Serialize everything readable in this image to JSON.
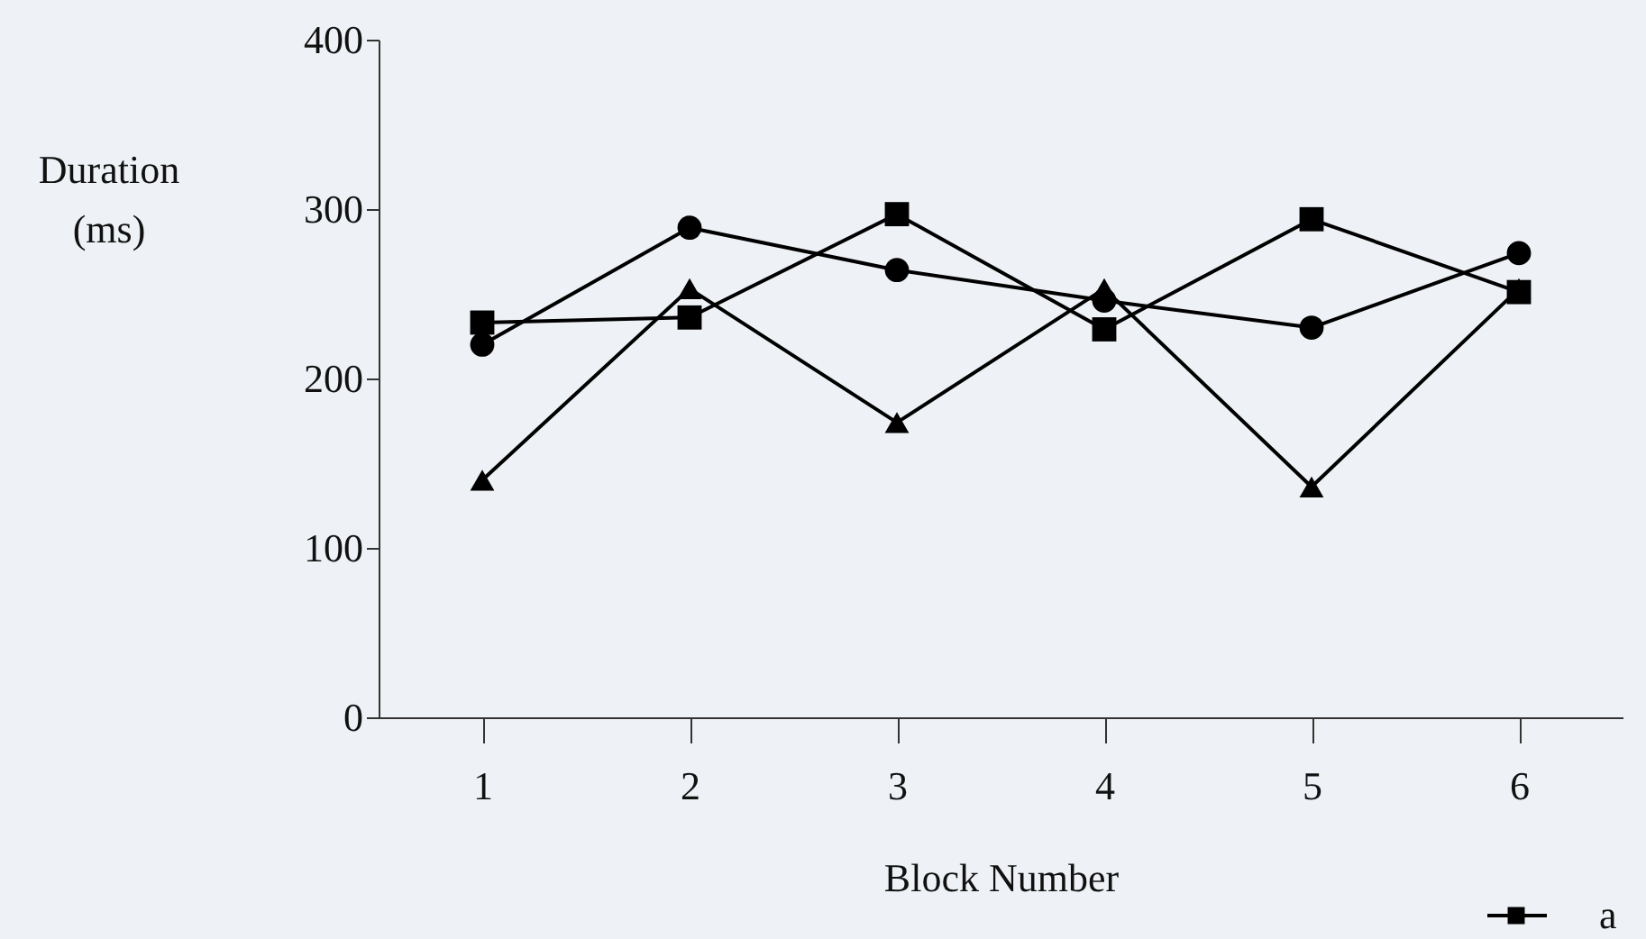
{
  "chart_data": {
    "type": "line",
    "xlabel": "Block Number",
    "ylabel": "Duration (ms)",
    "x": [
      1,
      2,
      3,
      4,
      5,
      6
    ],
    "xlim": [
      0.5,
      6.5
    ],
    "xticks": [
      1,
      2,
      3,
      4,
      5,
      6
    ],
    "ylim": [
      0,
      400
    ],
    "yticks": [
      0,
      100,
      200,
      300,
      400
    ],
    "grid": false,
    "legend": "bottom right",
    "line_style": "solid",
    "series": [
      {
        "name": "a",
        "color": "#000000",
        "marker": "square",
        "values": [
          233,
          236,
          297,
          229,
          294,
          251
        ]
      },
      {
        "color": "#000000",
        "marker": "circle",
        "values": [
          220,
          289,
          264,
          246,
          230,
          274
        ]
      },
      {
        "color": "#000000",
        "marker": "triangle",
        "values": [
          140,
          253,
          174,
          253,
          136,
          253
        ]
      }
    ]
  }
}
